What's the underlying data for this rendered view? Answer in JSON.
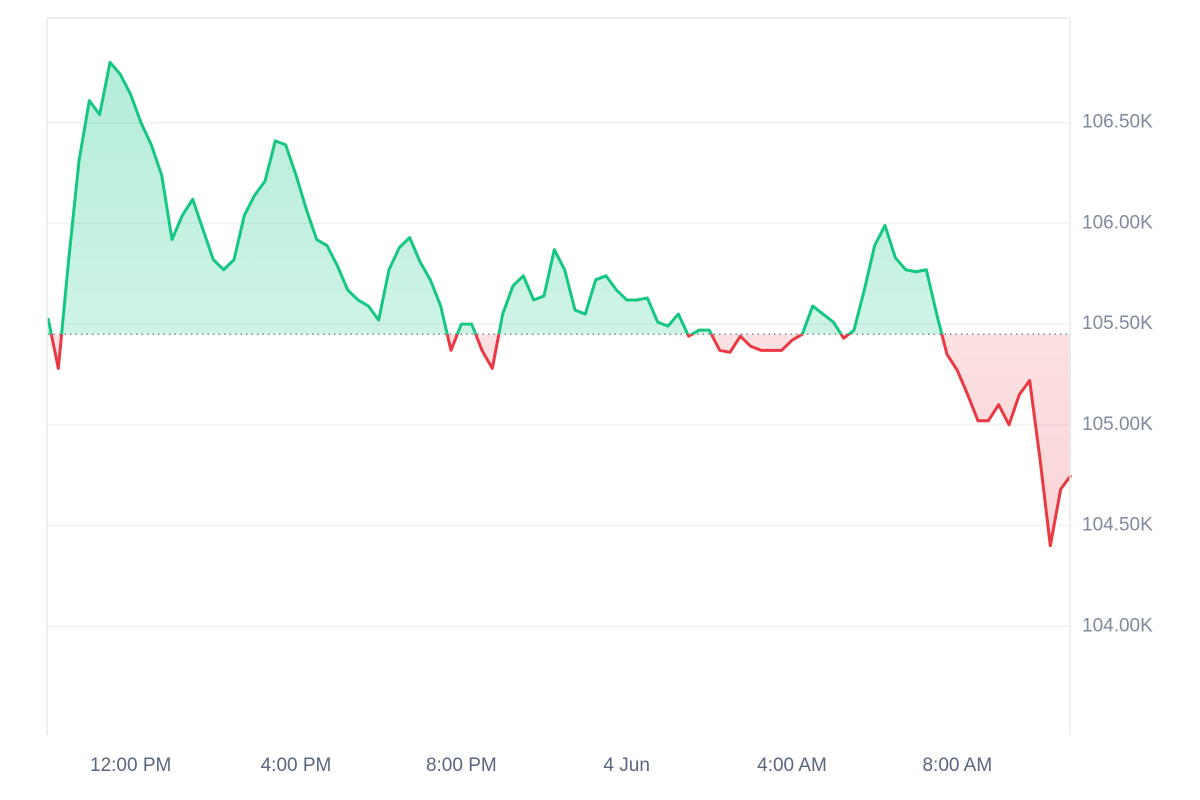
{
  "chart_data": {
    "type": "line",
    "categories": [
      null,
      null,
      null,
      null,
      null,
      null,
      null,
      null,
      "12:00 PM",
      null,
      null,
      null,
      null,
      null,
      null,
      null,
      null,
      null,
      null,
      null,
      null,
      null,
      null,
      null,
      "4:00 PM",
      null,
      null,
      null,
      null,
      null,
      null,
      null,
      null,
      null,
      null,
      null,
      null,
      null,
      null,
      null,
      "8:00 PM",
      null,
      null,
      null,
      null,
      null,
      null,
      null,
      null,
      null,
      null,
      null,
      null,
      null,
      null,
      null,
      "4 Jun",
      null,
      null,
      null,
      null,
      null,
      null,
      null,
      null,
      null,
      null,
      null,
      null,
      null,
      null,
      null,
      "4:00 AM",
      null,
      null,
      null,
      null,
      null,
      null,
      null,
      null,
      null,
      null,
      null,
      null,
      null,
      null,
      null,
      "8:00 AM",
      null,
      null,
      null,
      null,
      null,
      null,
      null,
      null,
      null,
      null,
      null
    ],
    "values": [
      105530,
      105280,
      105820,
      106310,
      106610,
      106540,
      106800,
      106740,
      106640,
      106500,
      106390,
      106240,
      105920,
      106040,
      106120,
      105970,
      105820,
      105770,
      105820,
      106040,
      106140,
      106210,
      106410,
      106390,
      106240,
      106070,
      105920,
      105890,
      105790,
      105670,
      105620,
      105590,
      105520,
      105770,
      105880,
      105930,
      105810,
      105720,
      105590,
      105370,
      105500,
      105500,
      105370,
      105280,
      105550,
      105690,
      105740,
      105620,
      105640,
      105870,
      105770,
      105570,
      105550,
      105720,
      105740,
      105670,
      105620,
      105620,
      105630,
      105510,
      105490,
      105550,
      105440,
      105470,
      105470,
      105370,
      105360,
      105440,
      105390,
      105370,
      105370,
      105370,
      105420,
      105450,
      105590,
      105550,
      105510,
      105430,
      105470,
      105670,
      105890,
      105990,
      105830,
      105770,
      105760,
      105770,
      105550,
      105350,
      105270,
      105150,
      105020,
      105020,
      105100,
      105000,
      105150,
      105220,
      104830,
      104400,
      104680,
      104750
    ],
    "baseline": 105450,
    "up_color": "#16c784",
    "down_color": "#ea3943",
    "ylim": [
      103460,
      107020
    ],
    "yticks": [
      {
        "value": 104000,
        "label": "104.00K"
      },
      {
        "value": 104500,
        "label": "104.50K"
      },
      {
        "value": 105000,
        "label": "105.00K"
      },
      {
        "value": 105500,
        "label": "105.50K"
      },
      {
        "value": 106000,
        "label": "106.00K"
      },
      {
        "value": 106500,
        "label": "106.50K"
      }
    ],
    "grid": true
  }
}
